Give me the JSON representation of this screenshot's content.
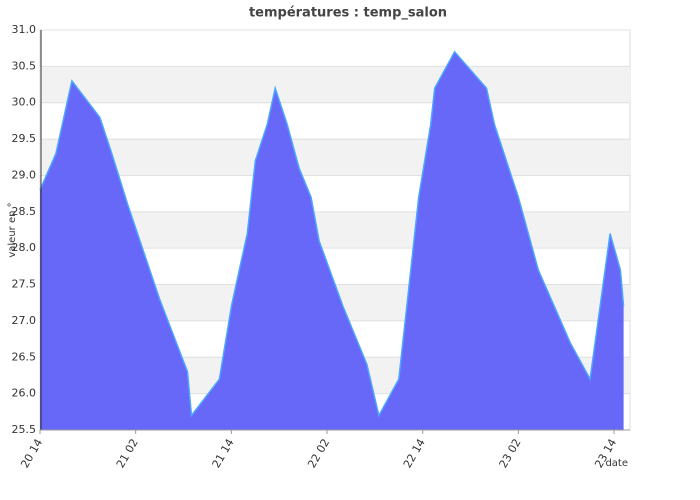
{
  "chart_data": {
    "type": "area",
    "title": "températures : temp_salon",
    "y_label": "valeur en °",
    "x_label": "date",
    "x": [
      494,
      496,
      498,
      501.5,
      503,
      505,
      509,
      512.5,
      513,
      516.5,
      518,
      519,
      520,
      521,
      522.5,
      523.5,
      525,
      526.5,
      528,
      529,
      532,
      535,
      536.5,
      539,
      539.5,
      540,
      541.5,
      543,
      543.5,
      546,
      550,
      551,
      552.5,
      554,
      556.5,
      558.5,
      560.5,
      563,
      565.5,
      566.8,
      567.2
    ],
    "values": [
      28.8,
      29.3,
      30.3,
      29.8,
      29.3,
      28.6,
      27.3,
      26.3,
      25.7,
      26.2,
      27.2,
      27.7,
      28.2,
      29.2,
      29.7,
      30.2,
      29.7,
      29.1,
      28.7,
      28.1,
      27.2,
      26.4,
      25.7,
      26.2,
      26.7,
      27.2,
      28.7,
      29.7,
      30.2,
      30.7,
      30.2,
      29.7,
      29.2,
      28.7,
      27.7,
      27.2,
      26.7,
      26.2,
      28.2,
      27.7,
      27.2
    ],
    "color": "#5f5ff8",
    "line_color": "#4da6ff",
    "xlim": [
      494,
      568
    ],
    "xticks": [
      {
        "value": 494,
        "label": "20 14"
      },
      {
        "value": 506,
        "label": "21 02"
      },
      {
        "value": 518,
        "label": "21 14"
      },
      {
        "value": 530,
        "label": "22 02"
      },
      {
        "value": 542,
        "label": "22 14"
      },
      {
        "value": 554,
        "label": "23 02"
      },
      {
        "value": 566,
        "label": "23 14"
      }
    ],
    "ylim": [
      25.5,
      31
    ],
    "yticks": [
      25.5,
      {
        "value": 26,
        "label": "26.0"
      },
      26.5,
      {
        "value": 27,
        "label": "27.0"
      },
      27.5,
      {
        "value": 28,
        "label": "28.0"
      },
      28.5,
      {
        "value": 29,
        "label": "29.0"
      },
      29.5,
      {
        "value": 30,
        "label": "30.0"
      },
      30.5,
      {
        "value": 31,
        "label": "31.0"
      }
    ],
    "grid": true
  }
}
